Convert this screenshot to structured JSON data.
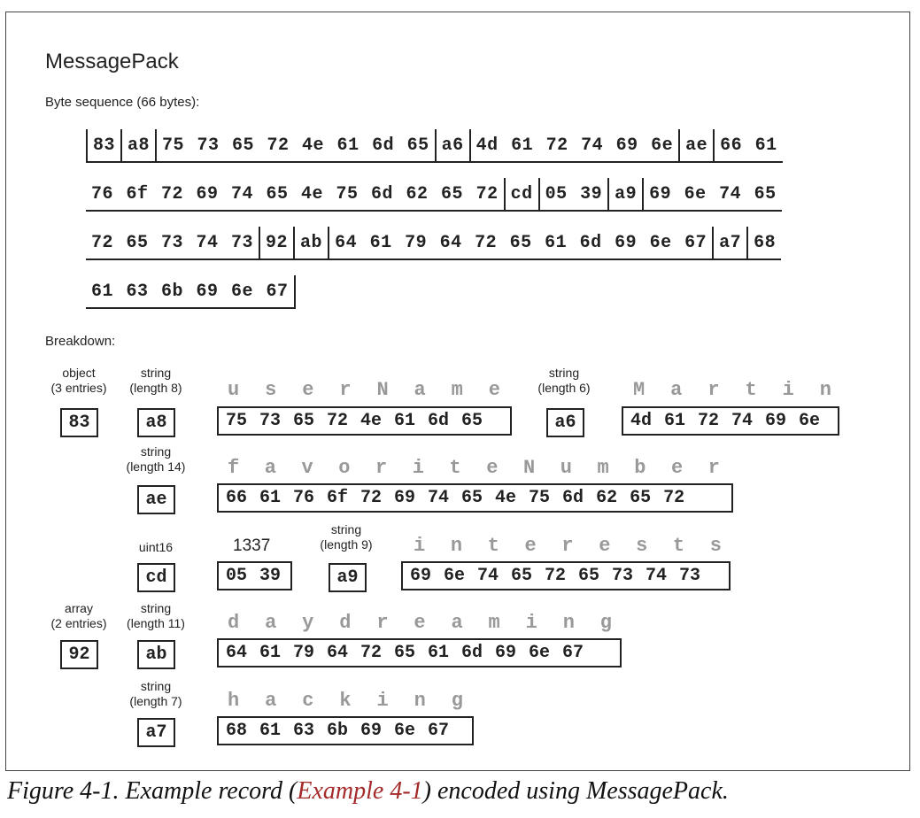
{
  "title": "MessagePack",
  "byte_sequence_label": "Byte sequence (66 bytes):",
  "byte_rows": [
    [
      "83",
      "a8",
      "75 73 65 72 4e 61 6d 65",
      "a6",
      "4d 61 72 74 69 6e",
      "ae",
      "66 61"
    ],
    [
      "76 6f 72 69 74 65 4e 75 6d 62 65 72",
      "cd",
      "05 39",
      "a9",
      "69 6e 74 65"
    ],
    [
      "72 65 73 74 73",
      "92",
      "ab",
      "64 61 79 64 72 65 61 6d 69 6e 67",
      "a7",
      "68"
    ],
    [
      "61 63 6b 69 6e 67"
    ]
  ],
  "breakdown_label": "Breakdown:",
  "breakdown": {
    "object_label": [
      "object",
      "(3 entries)"
    ],
    "object_byte": "83",
    "username": {
      "type_label": [
        "string",
        "(length 8)"
      ],
      "prefix": "a8",
      "chars": [
        "u",
        "s",
        "e",
        "r",
        "N",
        "a",
        "m",
        "e"
      ],
      "bytes": "75 73 65 72 4e 61 6d 65"
    },
    "username_value": {
      "type_label": [
        "string",
        "(length 6)"
      ],
      "prefix": "a6",
      "chars": [
        "M",
        "a",
        "r",
        "t",
        "i",
        "n"
      ],
      "bytes": "4d 61 72 74 69 6e"
    },
    "favorite": {
      "type_label": [
        "string",
        "(length 14)"
      ],
      "prefix": "ae",
      "chars": [
        "f",
        "a",
        "v",
        "o",
        "r",
        "i",
        "t",
        "e",
        "N",
        "u",
        "m",
        "b",
        "e",
        "r"
      ],
      "bytes": "66 61 76 6f 72 69 74 65 4e 75 6d 62 65 72"
    },
    "uint16": {
      "type_label": [
        "uint16"
      ],
      "prefix": "cd",
      "value": "1337",
      "bytes": "05 39"
    },
    "interests": {
      "type_label": [
        "string",
        "(length 9)"
      ],
      "prefix": "a9",
      "chars": [
        "i",
        "n",
        "t",
        "e",
        "r",
        "e",
        "s",
        "t",
        "s"
      ],
      "bytes": "69 6e 74 65 72 65 73 74 73"
    },
    "array_label": [
      "array",
      "(2 entries)"
    ],
    "array_byte": "92",
    "daydreaming": {
      "type_label": [
        "string",
        "(length 11)"
      ],
      "prefix": "ab",
      "chars": [
        "d",
        "a",
        "y",
        "d",
        "r",
        "e",
        "a",
        "m",
        "i",
        "n",
        "g"
      ],
      "bytes": "64 61 79 64 72 65 61 6d 69 6e 67"
    },
    "hacking": {
      "type_label": [
        "string",
        "(length 7)"
      ],
      "prefix": "a7",
      "chars": [
        "h",
        "a",
        "c",
        "k",
        "i",
        "n",
        "g"
      ],
      "bytes": "68 61 63 6b 69 6e 67"
    }
  },
  "caption": {
    "prefix": "Figure 4-1. Example record (",
    "link": "Example 4-1",
    "suffix": ") encoded using MessagePack."
  }
}
